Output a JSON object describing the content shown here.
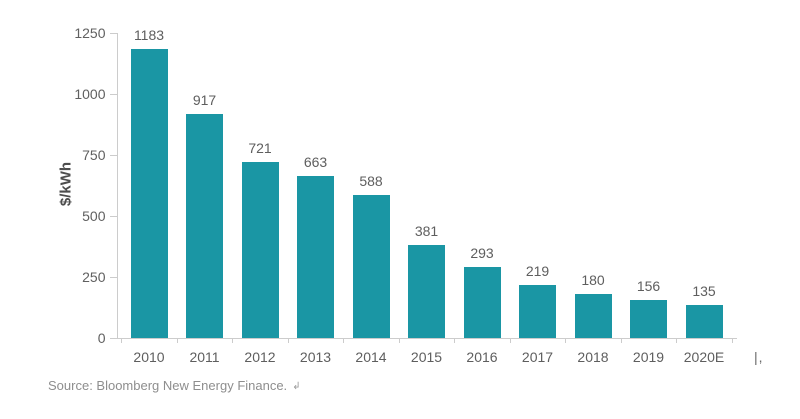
{
  "chart_data": {
    "type": "bar",
    "categories": [
      "2010",
      "2011",
      "2012",
      "2013",
      "2014",
      "2015",
      "2016",
      "2017",
      "2018",
      "2019",
      "2020E"
    ],
    "values": [
      1183,
      917,
      721,
      663,
      588,
      381,
      293,
      219,
      180,
      156,
      135
    ],
    "title": "",
    "xlabel": "",
    "ylabel": "$/kWh",
    "ylim": [
      0,
      1250
    ],
    "yticks": [
      0,
      250,
      500,
      750,
      1000,
      1250
    ],
    "grid": false,
    "legend": "none",
    "value_labels_shown": true,
    "bar_color": "#1a96a4",
    "axis_line_color": "#cccccc",
    "label_color": "#5e5e5e"
  },
  "source": {
    "text": "Source: Bloomberg New Energy Finance.",
    "return_mark": "↲"
  },
  "artifact": {
    "text": "|,"
  }
}
